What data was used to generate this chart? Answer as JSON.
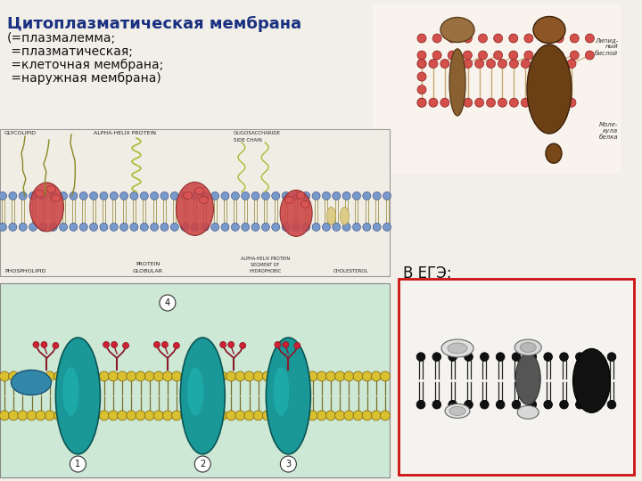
{
  "title": "Цитоплазматическая мембрана",
  "subtitle_lines": [
    "(=плазмалемма;",
    " =плазматическая;",
    " =клеточная мембрана;",
    " =наружная мембрана)"
  ],
  "ege_label": "В ЕГЭ:",
  "bg_color": "#f2efe9",
  "title_color": "#1a3080",
  "text_color": "#111111",
  "title_fontsize": 13,
  "subtitle_fontsize": 10,
  "ege_fontsize": 12,
  "fig_width": 7.2,
  "fig_height": 5.4,
  "dpi": 100
}
